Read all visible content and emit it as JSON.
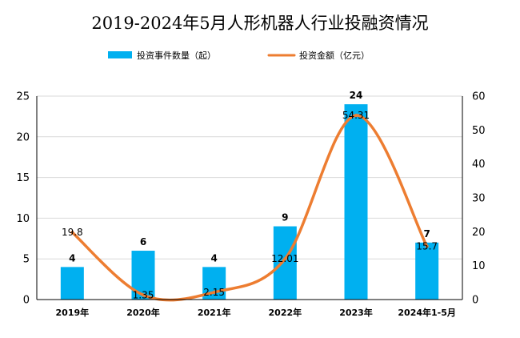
{
  "chart_data": {
    "type": "bar",
    "title": "2019-2024年5月人形机器人行业投融资情况",
    "categories": [
      "2019年",
      "2020年",
      "2021年",
      "2022年",
      "2023年",
      "2024年1-5月"
    ],
    "series": [
      {
        "name": "投资事件数量（起）",
        "type": "bar",
        "axis": "left",
        "color": "#00B0F0",
        "values": [
          4,
          6,
          4,
          9,
          24,
          7
        ],
        "labels": [
          "4",
          "6",
          "4",
          "9",
          "24",
          "7"
        ]
      },
      {
        "name": "投资金额（亿元）",
        "type": "line",
        "axis": "right",
        "color": "#ED7D31",
        "values": [
          19.8,
          1.35,
          2.15,
          12.01,
          54.31,
          15.7
        ],
        "labels": [
          "19.8",
          "1.35",
          "2.15",
          "12.01",
          "54.31",
          "15.7"
        ]
      }
    ],
    "y_left": {
      "min": 0,
      "max": 25,
      "ticks": [
        0,
        5,
        10,
        15,
        20,
        25
      ],
      "tick_labels": [
        "0",
        "5",
        "10",
        "15",
        "20",
        "25"
      ]
    },
    "y_right": {
      "min": 0,
      "max": 60,
      "ticks": [
        0,
        10,
        20,
        30,
        40,
        50,
        60
      ],
      "tick_labels": [
        "0",
        "10",
        "20",
        "30",
        "40",
        "50",
        "60"
      ]
    },
    "grid": true,
    "legend_position": "top"
  }
}
